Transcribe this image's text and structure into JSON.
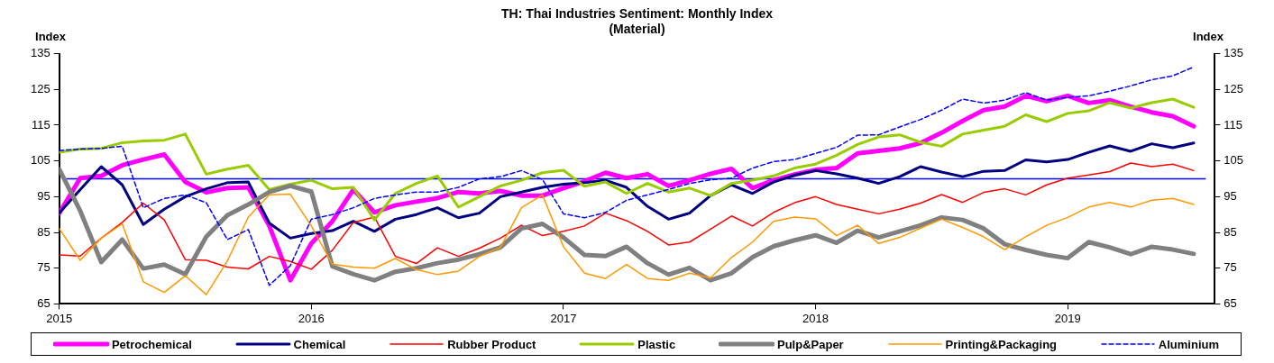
{
  "chart_data": {
    "type": "line",
    "title": "TH: Thai Industries Sentiment: Monthly Index",
    "subtitle": "(Material)",
    "ylabel": "Index",
    "y2label": "Index",
    "x": [
      "2015-01",
      "2015-02",
      "2015-03",
      "2015-04",
      "2015-05",
      "2015-06",
      "2015-07",
      "2015-08",
      "2015-09",
      "2015-10",
      "2015-11",
      "2015-12",
      "2016-01",
      "2016-02",
      "2016-03",
      "2016-04",
      "2016-05",
      "2016-06",
      "2016-07",
      "2016-08",
      "2016-09",
      "2016-10",
      "2016-11",
      "2016-12",
      "2017-01",
      "2017-02",
      "2017-03",
      "2017-04",
      "2017-05",
      "2017-06",
      "2017-07",
      "2017-08",
      "2017-09",
      "2017-10",
      "2017-11",
      "2017-12",
      "2018-01",
      "2018-02",
      "2018-03",
      "2018-04",
      "2018-05",
      "2018-06",
      "2018-07",
      "2018-08",
      "2018-09",
      "2018-10",
      "2018-11",
      "2018-12",
      "2019-01",
      "2019-02",
      "2019-03",
      "2019-04",
      "2019-05",
      "2019-06",
      "2019-07"
    ],
    "xlim": [
      "2015-01",
      "2019-08"
    ],
    "xticks": [
      {
        "value": "2015-01",
        "label": "2015"
      },
      {
        "value": "2016-01",
        "label": "2016"
      },
      {
        "value": "2017-01",
        "label": "2017"
      },
      {
        "value": "2018-01",
        "label": "2018"
      },
      {
        "value": "2019-01",
        "label": "2019"
      }
    ],
    "ylim": [
      65,
      135
    ],
    "yticks": [
      65,
      75,
      85,
      95,
      105,
      115,
      125,
      135
    ],
    "y2lim": [
      65,
      135
    ],
    "y2ticks": [
      65,
      75,
      85,
      95,
      105,
      115,
      125,
      135
    ],
    "grid": false,
    "legend": "bottom",
    "marker": "none",
    "ref_lines": [
      {
        "axis": "y",
        "value": 100,
        "color": "#0000ff",
        "line_style": "solid"
      }
    ],
    "series": [
      {
        "name": "Petrochemical",
        "color": "#ff00ff",
        "values": [
          90.4,
          100.2,
          100.8,
          103.8,
          105.4,
          106.8,
          99.1,
          96.2,
          97.4,
          97.6,
          86.8,
          71.6,
          81.9,
          88.1,
          97.0,
          90.6,
          92.6,
          93.6,
          94.6,
          96.3,
          95.9,
          96.6,
          95.3,
          95.3,
          97.4,
          99.3,
          101.7,
          100.2,
          101.3,
          98.0,
          99.6,
          101.4,
          102.8,
          97.4,
          99.6,
          101.2,
          102.5,
          103.0,
          107.1,
          107.8,
          108.5,
          110.0,
          112.9,
          116.2,
          119.2,
          120.2,
          123.2,
          121.7,
          123.2,
          121.2,
          122.0,
          120.2,
          118.6,
          117.5,
          114.7
        ]
      },
      {
        "name": "Chemical",
        "color": "#000080",
        "values": [
          90.4,
          97.0,
          103.4,
          98.3,
          87.2,
          91.5,
          95.0,
          97.2,
          98.9,
          99.1,
          87.6,
          83.4,
          84.7,
          85.5,
          88.1,
          85.3,
          88.7,
          90.0,
          91.9,
          89.1,
          90.4,
          95.0,
          96.3,
          97.6,
          98.5,
          98.9,
          99.6,
          97.6,
          92.3,
          88.7,
          90.4,
          95.3,
          98.3,
          95.9,
          99.1,
          101.0,
          102.3,
          101.4,
          100.2,
          98.7,
          100.6,
          103.4,
          101.9,
          100.6,
          102.1,
          102.3,
          105.3,
          104.7,
          105.4,
          107.4,
          109.2,
          107.7,
          109.8,
          108.7,
          110.0
        ]
      },
      {
        "name": "Rubber Product",
        "color": "#ff0000",
        "line_style": "solid",
        "values": [
          78.7,
          78.4,
          83.4,
          87.8,
          93.2,
          88.5,
          77.4,
          77.2,
          75.3,
          74.8,
          78.3,
          76.9,
          74.7,
          80.0,
          87.8,
          89.3,
          78.3,
          76.3,
          80.7,
          78.3,
          80.6,
          83.4,
          87.0,
          84.1,
          85.3,
          86.8,
          90.4,
          88.3,
          85.3,
          81.5,
          82.3,
          85.9,
          89.6,
          86.8,
          90.6,
          93.3,
          95.0,
          92.8,
          91.5,
          90.2,
          91.5,
          93.2,
          95.6,
          93.4,
          96.2,
          97.2,
          95.5,
          98.3,
          100.2,
          101.1,
          102.0,
          104.4,
          103.4,
          104.1,
          102.3
        ]
      },
      {
        "name": "Plastic",
        "color": "#99cc00",
        "values": [
          107.4,
          108.3,
          108.5,
          110.1,
          110.6,
          110.8,
          112.5,
          101.3,
          102.7,
          103.8,
          97.0,
          98.5,
          99.6,
          97.2,
          97.6,
          88.5,
          95.9,
          98.7,
          100.8,
          92.1,
          95.0,
          98.0,
          99.6,
          101.7,
          102.4,
          97.9,
          99.1,
          95.9,
          98.7,
          96.3,
          97.4,
          95.3,
          98.7,
          99.6,
          100.8,
          103.0,
          104.1,
          106.6,
          109.6,
          111.7,
          112.3,
          110.2,
          109.1,
          112.5,
          113.6,
          114.7,
          117.9,
          116.0,
          118.3,
          119.0,
          121.3,
          119.8,
          121.3,
          122.3,
          120.0
        ]
      },
      {
        "name": "Pulp&Paper",
        "color": "#808080",
        "values": [
          102.7,
          91.0,
          76.7,
          83.0,
          74.9,
          76.0,
          73.3,
          83.8,
          89.8,
          92.8,
          96.3,
          98.0,
          96.4,
          75.5,
          73.3,
          71.6,
          74.0,
          75.0,
          76.4,
          77.4,
          78.9,
          80.8,
          86.1,
          87.4,
          83.6,
          78.7,
          78.4,
          81.0,
          76.4,
          73.2,
          75.1,
          71.6,
          73.6,
          78.1,
          81.1,
          82.8,
          84.2,
          82.1,
          85.5,
          83.6,
          85.3,
          87.0,
          89.2,
          88.5,
          86.1,
          81.7,
          80.1,
          78.7,
          77.8,
          82.3,
          80.8,
          78.9,
          81.0,
          80.2,
          79.0
        ]
      },
      {
        "name": "Printing&Packaging",
        "color": "#ff9900",
        "values": [
          86.1,
          77.2,
          83.4,
          87.4,
          71.2,
          68.2,
          72.9,
          67.6,
          77.0,
          89.3,
          95.5,
          95.7,
          86.8,
          76.1,
          75.3,
          75.0,
          77.7,
          74.6,
          73.2,
          74.2,
          78.3,
          80.8,
          91.9,
          95.5,
          81.0,
          73.6,
          72.1,
          76.0,
          72.1,
          71.6,
          73.6,
          72.3,
          78.0,
          82.3,
          88.1,
          89.3,
          88.8,
          84.1,
          87.0,
          81.9,
          83.6,
          86.2,
          88.7,
          86.4,
          83.8,
          80.2,
          83.8,
          87.0,
          89.2,
          92.1,
          93.4,
          92.1,
          94.0,
          94.5,
          92.8
        ]
      },
      {
        "name": "Aluminium",
        "color": "#0000ff",
        "line_style": "dashed",
        "values": [
          107.9,
          108.3,
          108.5,
          109.1,
          91.9,
          94.5,
          95.5,
          93.3,
          83.0,
          85.8,
          70.2,
          75.7,
          88.7,
          90.0,
          91.9,
          94.5,
          95.5,
          96.3,
          96.3,
          97.6,
          100.0,
          100.6,
          102.3,
          99.8,
          90.2,
          89.1,
          90.6,
          94.0,
          95.5,
          97.0,
          98.7,
          99.7,
          100.2,
          103.0,
          104.8,
          105.4,
          107.1,
          108.8,
          112.2,
          112.3,
          114.5,
          116.6,
          119.2,
          122.3,
          121.2,
          122.0,
          124.1,
          122.0,
          122.8,
          123.2,
          124.5,
          126.0,
          127.7,
          128.8,
          131.3
        ]
      }
    ]
  }
}
